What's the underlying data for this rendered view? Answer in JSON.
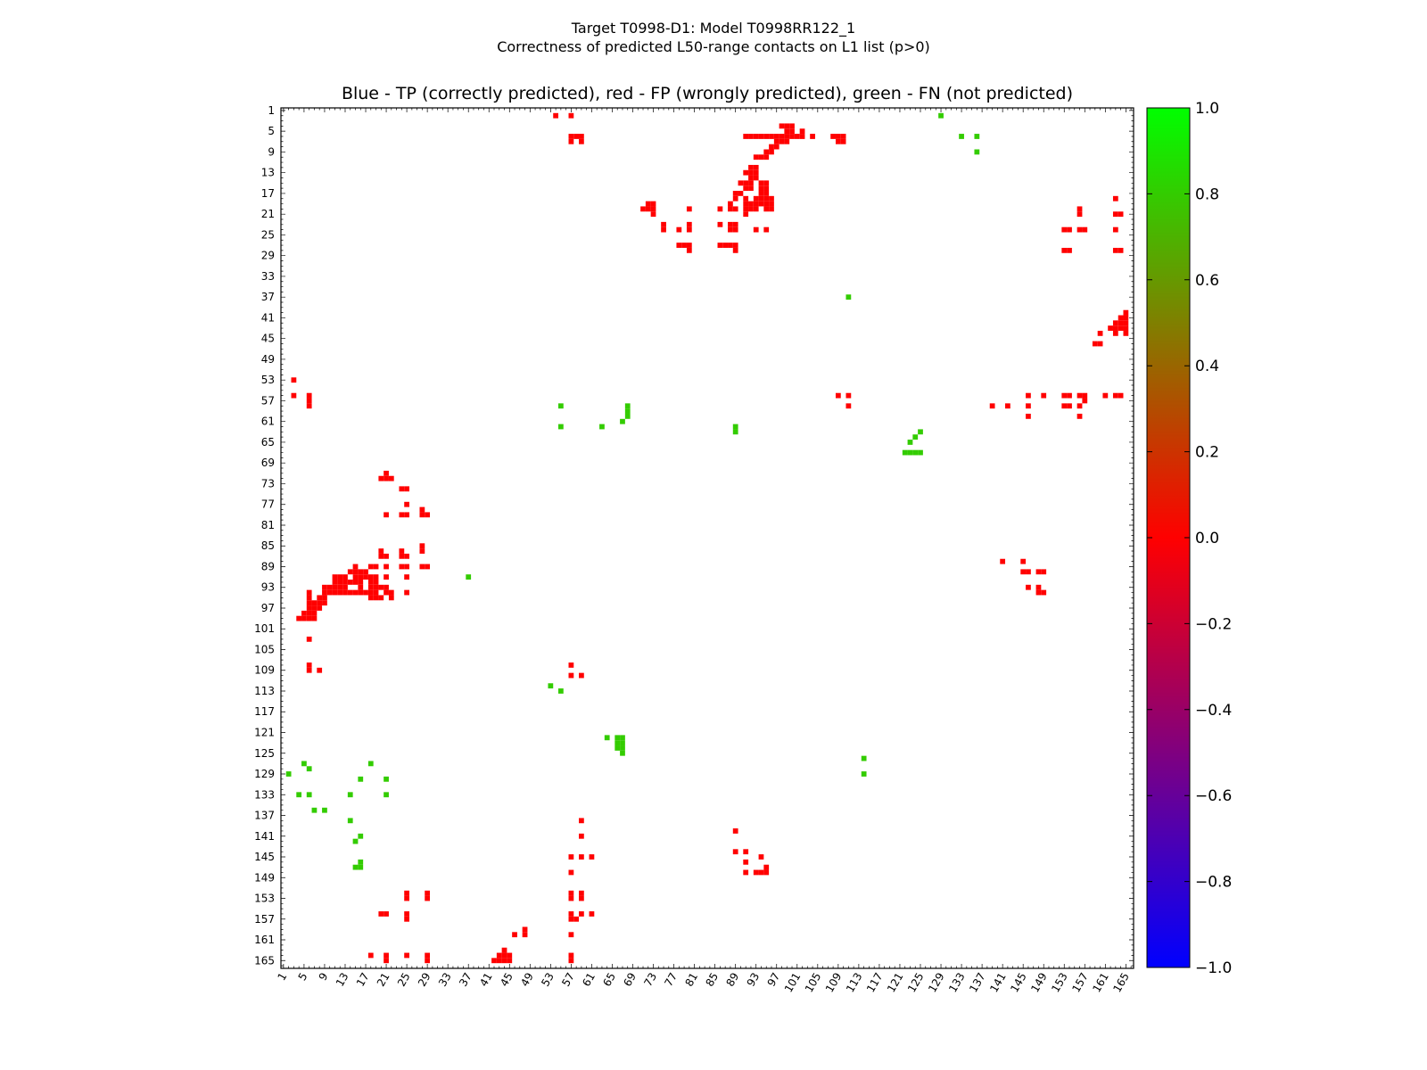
{
  "header": {
    "line1": "Target T0998-D1: Model T0998RR122_1",
    "line2": "Correctness of predicted L50-range contacts on L1 list (p>0)"
  },
  "plot_title": "Blue - TP (correctly predicted), red - FP (wrongly predicted), green - FN (not predicted)",
  "chart_data": {
    "type": "heatmap",
    "title": "Blue - TP (correctly predicted), red - FP (wrongly predicted), green - FN (not predicted)",
    "xlabel": "",
    "ylabel": "",
    "xlim": [
      1,
      166
    ],
    "ylim": [
      1,
      166
    ],
    "xticks": [
      1,
      5,
      9,
      13,
      17,
      21,
      25,
      29,
      33,
      37,
      41,
      45,
      49,
      53,
      57,
      61,
      65,
      69,
      73,
      77,
      81,
      85,
      89,
      93,
      97,
      101,
      105,
      109,
      113,
      117,
      121,
      125,
      129,
      133,
      137,
      141,
      145,
      149,
      153,
      157,
      161,
      165
    ],
    "yticks": [
      1,
      5,
      9,
      13,
      17,
      21,
      25,
      29,
      33,
      37,
      41,
      45,
      49,
      53,
      57,
      61,
      65,
      69,
      73,
      77,
      81,
      85,
      89,
      93,
      97,
      101,
      105,
      109,
      113,
      117,
      121,
      125,
      129,
      133,
      137,
      141,
      145,
      149,
      153,
      157,
      161,
      165
    ],
    "colorbar": {
      "range": [
        -1.0,
        1.0
      ],
      "ticks": [
        "1.0",
        "0.8",
        "0.6",
        "0.4",
        "0.2",
        "0.0",
        "−0.2",
        "−0.4",
        "−0.6",
        "−0.8",
        "−1.0"
      ],
      "stops": [
        "#00ff00",
        "#ff0000",
        "#0000ff"
      ]
    },
    "colors": {
      "TP": "#0000ff",
      "FP": "#ff0000",
      "FN": "#33cc00"
    },
    "fn_contacts": [
      [
        2,
        129
      ],
      [
        4,
        133
      ],
      [
        7,
        136
      ],
      [
        14,
        138
      ],
      [
        14,
        133
      ],
      [
        16,
        130
      ],
      [
        18,
        127
      ],
      [
        21,
        130
      ],
      [
        21,
        133
      ],
      [
        55,
        58
      ],
      [
        55,
        62
      ],
      [
        63,
        62
      ],
      [
        67,
        61
      ],
      [
        68,
        60
      ],
      [
        68,
        58
      ],
      [
        68,
        59
      ],
      [
        55,
        113
      ],
      [
        89,
        62
      ],
      [
        89,
        63
      ],
      [
        111,
        37
      ],
      [
        111,
        37
      ],
      [
        53,
        112
      ],
      [
        114,
        126
      ],
      [
        114,
        129
      ],
      [
        64,
        122
      ],
      [
        67,
        122
      ],
      [
        67,
        123
      ],
      [
        67,
        124
      ],
      [
        67,
        125
      ],
      [
        66,
        122
      ],
      [
        66,
        123
      ],
      [
        66,
        124
      ],
      [
        37,
        91
      ],
      [
        6,
        128
      ],
      [
        5,
        127
      ],
      [
        6,
        133
      ],
      [
        9,
        136
      ],
      [
        15,
        142
      ],
      [
        16,
        141
      ],
      [
        16,
        146
      ],
      [
        16,
        147
      ],
      [
        15,
        147
      ],
      [
        123,
        65
      ],
      [
        125,
        63
      ],
      [
        124,
        64
      ],
      [
        125,
        67
      ],
      [
        123,
        67
      ],
      [
        122,
        67
      ],
      [
        124,
        67
      ],
      [
        129,
        2
      ],
      [
        133,
        6
      ],
      [
        136,
        6
      ],
      [
        136,
        9
      ]
    ],
    "fp_contacts": [
      [
        54,
        2
      ],
      [
        57,
        2
      ],
      [
        57,
        6
      ],
      [
        58,
        6
      ],
      [
        59,
        6
      ],
      [
        57,
        7
      ],
      [
        59,
        7
      ],
      [
        91,
        6
      ],
      [
        92,
        6
      ],
      [
        93,
        6
      ],
      [
        94,
        6
      ],
      [
        95,
        6
      ],
      [
        96,
        6
      ],
      [
        97,
        6
      ],
      [
        98,
        6
      ],
      [
        99,
        6
      ],
      [
        100,
        6
      ],
      [
        101,
        6
      ],
      [
        99,
        5
      ],
      [
        100,
        5
      ],
      [
        98,
        4
      ],
      [
        99,
        4
      ],
      [
        100,
        4
      ],
      [
        98,
        7
      ],
      [
        99,
        7
      ],
      [
        97,
        7
      ],
      [
        96,
        8
      ],
      [
        97,
        8
      ],
      [
        95,
        9
      ],
      [
        96,
        9
      ],
      [
        93,
        10
      ],
      [
        94,
        10
      ],
      [
        95,
        10
      ],
      [
        92,
        12
      ],
      [
        93,
        12
      ],
      [
        91,
        13
      ],
      [
        92,
        13
      ],
      [
        93,
        13
      ],
      [
        92,
        14
      ],
      [
        93,
        14
      ],
      [
        90,
        15
      ],
      [
        91,
        15
      ],
      [
        92,
        15
      ],
      [
        94,
        15
      ],
      [
        95,
        15
      ],
      [
        91,
        16
      ],
      [
        92,
        16
      ],
      [
        94,
        16
      ],
      [
        95,
        16
      ],
      [
        89,
        17
      ],
      [
        90,
        17
      ],
      [
        94,
        17
      ],
      [
        95,
        17
      ],
      [
        89,
        18
      ],
      [
        91,
        18
      ],
      [
        93,
        18
      ],
      [
        94,
        18
      ],
      [
        95,
        18
      ],
      [
        96,
        18
      ],
      [
        91,
        19
      ],
      [
        92,
        19
      ],
      [
        93,
        19
      ],
      [
        94,
        19
      ],
      [
        95,
        19
      ],
      [
        96,
        19
      ],
      [
        89,
        20
      ],
      [
        91,
        20
      ],
      [
        92,
        20
      ],
      [
        93,
        20
      ],
      [
        95,
        20
      ],
      [
        96,
        20
      ],
      [
        91,
        21
      ],
      [
        72,
        19
      ],
      [
        73,
        19
      ],
      [
        73,
        20
      ],
      [
        71,
        20
      ],
      [
        72,
        20
      ],
      [
        73,
        21
      ],
      [
        80,
        20
      ],
      [
        86,
        20
      ],
      [
        88,
        19
      ],
      [
        88,
        20
      ],
      [
        86,
        23
      ],
      [
        88,
        23
      ],
      [
        88,
        24
      ],
      [
        89,
        23
      ],
      [
        89,
        24
      ],
      [
        93,
        24
      ],
      [
        95,
        24
      ],
      [
        75,
        23
      ],
      [
        75,
        24
      ],
      [
        78,
        24
      ],
      [
        80,
        23
      ],
      [
        80,
        24
      ],
      [
        78,
        27
      ],
      [
        79,
        27
      ],
      [
        80,
        27
      ],
      [
        80,
        28
      ],
      [
        86,
        27
      ],
      [
        87,
        27
      ],
      [
        88,
        27
      ],
      [
        89,
        27
      ],
      [
        89,
        28
      ],
      [
        104,
        6
      ],
      [
        108,
        6
      ],
      [
        109,
        6
      ],
      [
        110,
        6
      ],
      [
        110,
        7
      ],
      [
        109,
        7
      ],
      [
        102,
        5
      ],
      [
        102,
        6
      ],
      [
        153,
        24
      ],
      [
        154,
        24
      ],
      [
        156,
        24
      ],
      [
        157,
        24
      ],
      [
        153,
        28
      ],
      [
        154,
        28
      ],
      [
        156,
        20
      ],
      [
        156,
        21
      ],
      [
        163,
        18
      ],
      [
        163,
        21
      ],
      [
        164,
        21
      ],
      [
        163,
        24
      ],
      [
        163,
        28
      ],
      [
        164,
        28
      ],
      [
        165,
        40
      ],
      [
        164,
        41
      ],
      [
        165,
        41
      ],
      [
        163,
        42
      ],
      [
        164,
        42
      ],
      [
        165,
        42
      ],
      [
        162,
        43
      ],
      [
        163,
        43
      ],
      [
        164,
        43
      ],
      [
        165,
        43
      ],
      [
        163,
        44
      ],
      [
        165,
        44
      ],
      [
        160,
        44
      ],
      [
        159,
        46
      ],
      [
        160,
        46
      ],
      [
        3,
        53
      ],
      [
        3,
        56
      ],
      [
        6,
        56
      ],
      [
        6,
        57
      ],
      [
        6,
        58
      ],
      [
        109,
        56
      ],
      [
        111,
        56
      ],
      [
        111,
        58
      ],
      [
        139,
        58
      ],
      [
        142,
        58
      ],
      [
        146,
        56
      ],
      [
        146,
        58
      ],
      [
        146,
        60
      ],
      [
        149,
        56
      ],
      [
        153,
        56
      ],
      [
        154,
        56
      ],
      [
        156,
        56
      ],
      [
        157,
        56
      ],
      [
        157,
        57
      ],
      [
        153,
        58
      ],
      [
        154,
        58
      ],
      [
        156,
        58
      ],
      [
        156,
        60
      ],
      [
        161,
        56
      ],
      [
        163,
        56
      ],
      [
        164,
        56
      ],
      [
        141,
        88
      ],
      [
        145,
        88
      ],
      [
        145,
        90
      ],
      [
        146,
        90
      ],
      [
        148,
        90
      ],
      [
        149,
        90
      ],
      [
        146,
        93
      ],
      [
        148,
        94
      ],
      [
        149,
        94
      ],
      [
        148,
        93
      ],
      [
        21,
        71
      ],
      [
        20,
        72
      ],
      [
        21,
        72
      ],
      [
        22,
        72
      ],
      [
        24,
        74
      ],
      [
        25,
        74
      ],
      [
        25,
        77
      ],
      [
        24,
        79
      ],
      [
        25,
        79
      ],
      [
        21,
        79
      ],
      [
        28,
        78
      ],
      [
        28,
        79
      ],
      [
        29,
        79
      ],
      [
        20,
        86
      ],
      [
        24,
        86
      ],
      [
        28,
        85
      ],
      [
        28,
        86
      ],
      [
        20,
        87
      ],
      [
        21,
        87
      ],
      [
        24,
        87
      ],
      [
        25,
        87
      ],
      [
        21,
        89
      ],
      [
        24,
        89
      ],
      [
        25,
        89
      ],
      [
        28,
        89
      ],
      [
        29,
        89
      ],
      [
        19,
        89
      ],
      [
        18,
        89
      ],
      [
        17,
        90
      ],
      [
        15,
        89
      ],
      [
        15,
        90
      ],
      [
        14,
        90
      ],
      [
        16,
        90
      ],
      [
        15,
        91
      ],
      [
        16,
        91
      ],
      [
        17,
        91
      ],
      [
        13,
        91
      ],
      [
        12,
        91
      ],
      [
        11,
        91
      ],
      [
        11,
        92
      ],
      [
        12,
        92
      ],
      [
        13,
        92
      ],
      [
        14,
        92
      ],
      [
        15,
        92
      ],
      [
        16,
        92
      ],
      [
        18,
        91
      ],
      [
        18,
        92
      ],
      [
        19,
        91
      ],
      [
        19,
        92
      ],
      [
        21,
        91
      ],
      [
        25,
        91
      ],
      [
        11,
        93
      ],
      [
        12,
        93
      ],
      [
        13,
        93
      ],
      [
        16,
        93
      ],
      [
        18,
        93
      ],
      [
        19,
        93
      ],
      [
        20,
        93
      ],
      [
        21,
        93
      ],
      [
        9,
        93
      ],
      [
        9,
        94
      ],
      [
        10,
        93
      ],
      [
        10,
        94
      ],
      [
        11,
        94
      ],
      [
        12,
        94
      ],
      [
        13,
        94
      ],
      [
        14,
        94
      ],
      [
        15,
        94
      ],
      [
        16,
        94
      ],
      [
        17,
        94
      ],
      [
        18,
        94
      ],
      [
        19,
        94
      ],
      [
        21,
        94
      ],
      [
        22,
        94
      ],
      [
        25,
        94
      ],
      [
        6,
        94
      ],
      [
        6,
        95
      ],
      [
        8,
        95
      ],
      [
        9,
        95
      ],
      [
        18,
        95
      ],
      [
        19,
        95
      ],
      [
        20,
        95
      ],
      [
        22,
        95
      ],
      [
        6,
        96
      ],
      [
        7,
        96
      ],
      [
        8,
        96
      ],
      [
        9,
        96
      ],
      [
        6,
        97
      ],
      [
        7,
        97
      ],
      [
        8,
        97
      ],
      [
        5,
        98
      ],
      [
        6,
        98
      ],
      [
        7,
        98
      ],
      [
        4,
        99
      ],
      [
        5,
        99
      ],
      [
        6,
        99
      ],
      [
        7,
        99
      ],
      [
        6,
        103
      ],
      [
        6,
        108
      ],
      [
        6,
        109
      ],
      [
        8,
        109
      ],
      [
        57,
        108
      ],
      [
        57,
        110
      ],
      [
        59,
        110
      ],
      [
        59,
        138
      ],
      [
        59,
        141
      ],
      [
        57,
        145
      ],
      [
        59,
        145
      ],
      [
        61,
        145
      ],
      [
        57,
        148
      ],
      [
        57,
        152
      ],
      [
        59,
        152
      ],
      [
        57,
        153
      ],
      [
        59,
        153
      ],
      [
        57,
        156
      ],
      [
        59,
        156
      ],
      [
        61,
        156
      ],
      [
        57,
        157
      ],
      [
        58,
        157
      ],
      [
        57,
        160
      ],
      [
        57,
        164
      ],
      [
        57,
        165
      ],
      [
        89,
        140
      ],
      [
        89,
        144
      ],
      [
        91,
        144
      ],
      [
        91,
        146
      ],
      [
        91,
        148
      ],
      [
        93,
        148
      ],
      [
        94,
        148
      ],
      [
        95,
        148
      ],
      [
        94,
        145
      ],
      [
        95,
        147
      ],
      [
        25,
        152
      ],
      [
        25,
        153
      ],
      [
        29,
        152
      ],
      [
        29,
        153
      ],
      [
        20,
        156
      ],
      [
        21,
        156
      ],
      [
        25,
        156
      ],
      [
        25,
        157
      ],
      [
        18,
        164
      ],
      [
        21,
        164
      ],
      [
        21,
        165
      ],
      [
        25,
        164
      ],
      [
        29,
        164
      ],
      [
        29,
        165
      ],
      [
        44,
        163
      ],
      [
        43,
        164
      ],
      [
        44,
        164
      ],
      [
        45,
        164
      ],
      [
        42,
        165
      ],
      [
        43,
        165
      ],
      [
        44,
        165
      ],
      [
        45,
        165
      ],
      [
        46,
        160
      ],
      [
        48,
        159
      ],
      [
        48,
        160
      ]
    ]
  }
}
